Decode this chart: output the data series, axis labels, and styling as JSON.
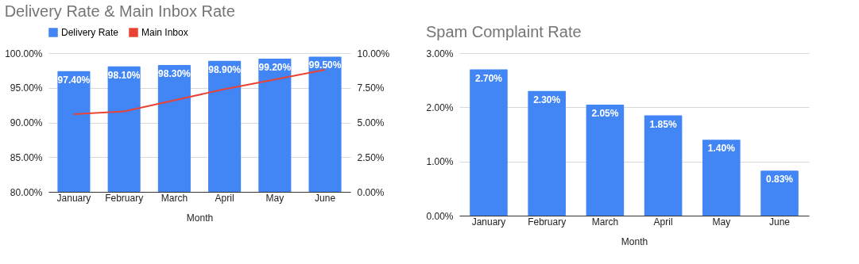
{
  "chart_data": [
    {
      "type": "bar",
      "title": "Delivery Rate & Main Inbox Rate",
      "xlabel": "Month",
      "categories": [
        "January",
        "February",
        "March",
        "April",
        "May",
        "June"
      ],
      "series": [
        {
          "name": "Delivery Rate",
          "color": "#4285f4",
          "values": [
            97.4,
            98.1,
            98.3,
            98.9,
            99.2,
            99.5
          ],
          "value_labels": [
            "97.40%",
            "98.10%",
            "98.30%",
            "98.90%",
            "99.20%",
            "99.50%"
          ]
        },
        {
          "name": "Main Inbox",
          "type": "line",
          "axis": "y2",
          "color": "#ea4335",
          "values": [
            5.6,
            5.8,
            6.6,
            7.4,
            8.1,
            8.8
          ]
        }
      ],
      "ylim": [
        80,
        100
      ],
      "yticks": [
        {
          "value": 80,
          "label": "80.00%"
        },
        {
          "value": 85,
          "label": "85.00%"
        },
        {
          "value": 90,
          "label": "90.00%"
        },
        {
          "value": 95,
          "label": "95.00%"
        },
        {
          "value": 100,
          "label": "100.00%"
        }
      ],
      "y2lim": [
        0,
        10
      ],
      "y2ticks": [
        {
          "value": 0,
          "label": "0.00%"
        },
        {
          "value": 2.5,
          "label": "2.50%"
        },
        {
          "value": 5,
          "label": "5.00%"
        },
        {
          "value": 7.5,
          "label": "7.50%"
        },
        {
          "value": 10,
          "label": "10.00%"
        }
      ],
      "legend": "top",
      "grid": "y"
    },
    {
      "type": "bar",
      "title": "Spam Complaint Rate",
      "xlabel": "Month",
      "categories": [
        "January",
        "February",
        "March",
        "April",
        "May",
        "June"
      ],
      "values": [
        2.7,
        2.3,
        2.05,
        1.85,
        1.4,
        0.83
      ],
      "color": "#4285f4",
      "value_labels": [
        "2.70%",
        "2.30%",
        "2.05%",
        "1.85%",
        "1.40%",
        "0.83%"
      ],
      "ylim": [
        0,
        3
      ],
      "yticks": [
        {
          "value": 0,
          "label": "0.00%"
        },
        {
          "value": 1,
          "label": "1.00%"
        },
        {
          "value": 2,
          "label": "2.00%"
        },
        {
          "value": 3,
          "label": "3.00%"
        }
      ],
      "grid": "y"
    }
  ]
}
